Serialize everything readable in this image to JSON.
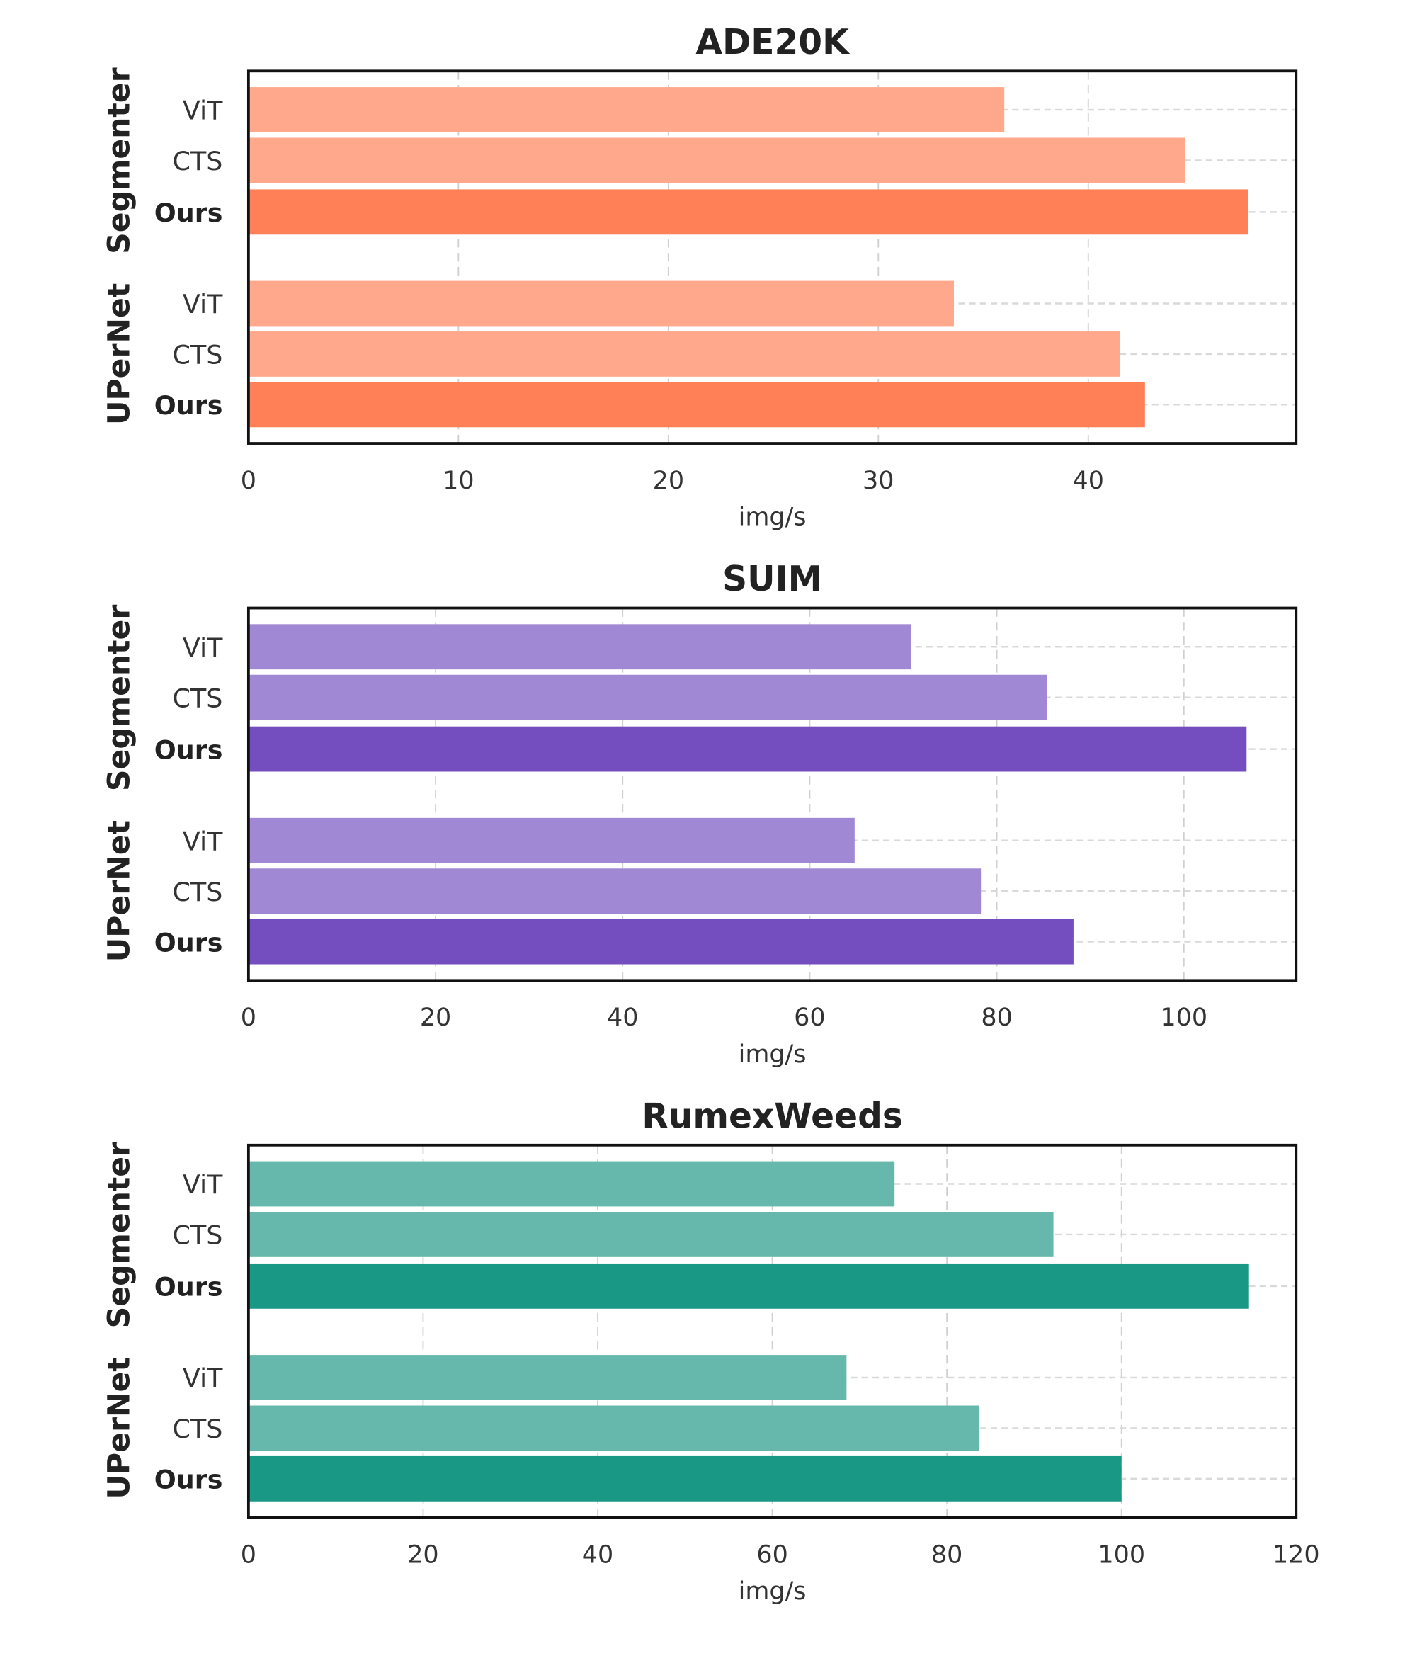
{
  "chart_data": [
    {
      "type": "bar",
      "orientation": "horizontal",
      "title": "ADE20K",
      "xlabel": "img/s",
      "ylabel": "",
      "xlim": [
        0,
        49.9
      ],
      "xticks": [
        0,
        10,
        20,
        30,
        40
      ],
      "grid": true,
      "colors": {
        "baseline": "#FFA88C",
        "ours": "#FF7F57"
      },
      "groups": [
        {
          "name": "Segmenter",
          "bars": [
            {
              "label": "ViT",
              "value": 36.0,
              "highlight": false
            },
            {
              "label": "CTS",
              "value": 44.6,
              "highlight": false
            },
            {
              "label": "Ours",
              "value": 47.6,
              "highlight": true
            }
          ]
        },
        {
          "name": "UPerNet",
          "bars": [
            {
              "label": "ViT",
              "value": 33.6,
              "highlight": false
            },
            {
              "label": "CTS",
              "value": 41.5,
              "highlight": false
            },
            {
              "label": "Ours",
              "value": 42.7,
              "highlight": true
            }
          ]
        }
      ]
    },
    {
      "type": "bar",
      "orientation": "horizontal",
      "title": "SUIM",
      "xlabel": "img/s",
      "ylabel": "",
      "xlim": [
        0,
        112
      ],
      "xticks": [
        0,
        20,
        40,
        60,
        80,
        100
      ],
      "grid": true,
      "colors": {
        "baseline": "#A088D4",
        "ours": "#744EBE"
      },
      "groups": [
        {
          "name": "Segmenter",
          "bars": [
            {
              "label": "ViT",
              "value": 70.8,
              "highlight": false
            },
            {
              "label": "CTS",
              "value": 85.4,
              "highlight": false
            },
            {
              "label": "Ours",
              "value": 106.7,
              "highlight": true
            }
          ]
        },
        {
          "name": "UPerNet",
          "bars": [
            {
              "label": "ViT",
              "value": 64.8,
              "highlight": false
            },
            {
              "label": "CTS",
              "value": 78.3,
              "highlight": false
            },
            {
              "label": "Ours",
              "value": 88.2,
              "highlight": true
            }
          ]
        }
      ]
    },
    {
      "type": "bar",
      "orientation": "horizontal",
      "title": "RumexWeeds",
      "xlabel": "img/s",
      "ylabel": "",
      "xlim": [
        0,
        120
      ],
      "xticks": [
        0,
        20,
        40,
        60,
        80,
        100,
        120
      ],
      "grid": true,
      "colors": {
        "baseline": "#66B8AC",
        "ours": "#199886"
      },
      "groups": [
        {
          "name": "Segmenter",
          "bars": [
            {
              "label": "ViT",
              "value": 74.0,
              "highlight": false
            },
            {
              "label": "CTS",
              "value": 92.2,
              "highlight": false
            },
            {
              "label": "Ours",
              "value": 114.6,
              "highlight": true
            }
          ]
        },
        {
          "name": "UPerNet",
          "bars": [
            {
              "label": "ViT",
              "value": 68.5,
              "highlight": false
            },
            {
              "label": "CTS",
              "value": 83.7,
              "highlight": false
            },
            {
              "label": "Ours",
              "value": 100.0,
              "highlight": true
            }
          ]
        }
      ]
    }
  ]
}
